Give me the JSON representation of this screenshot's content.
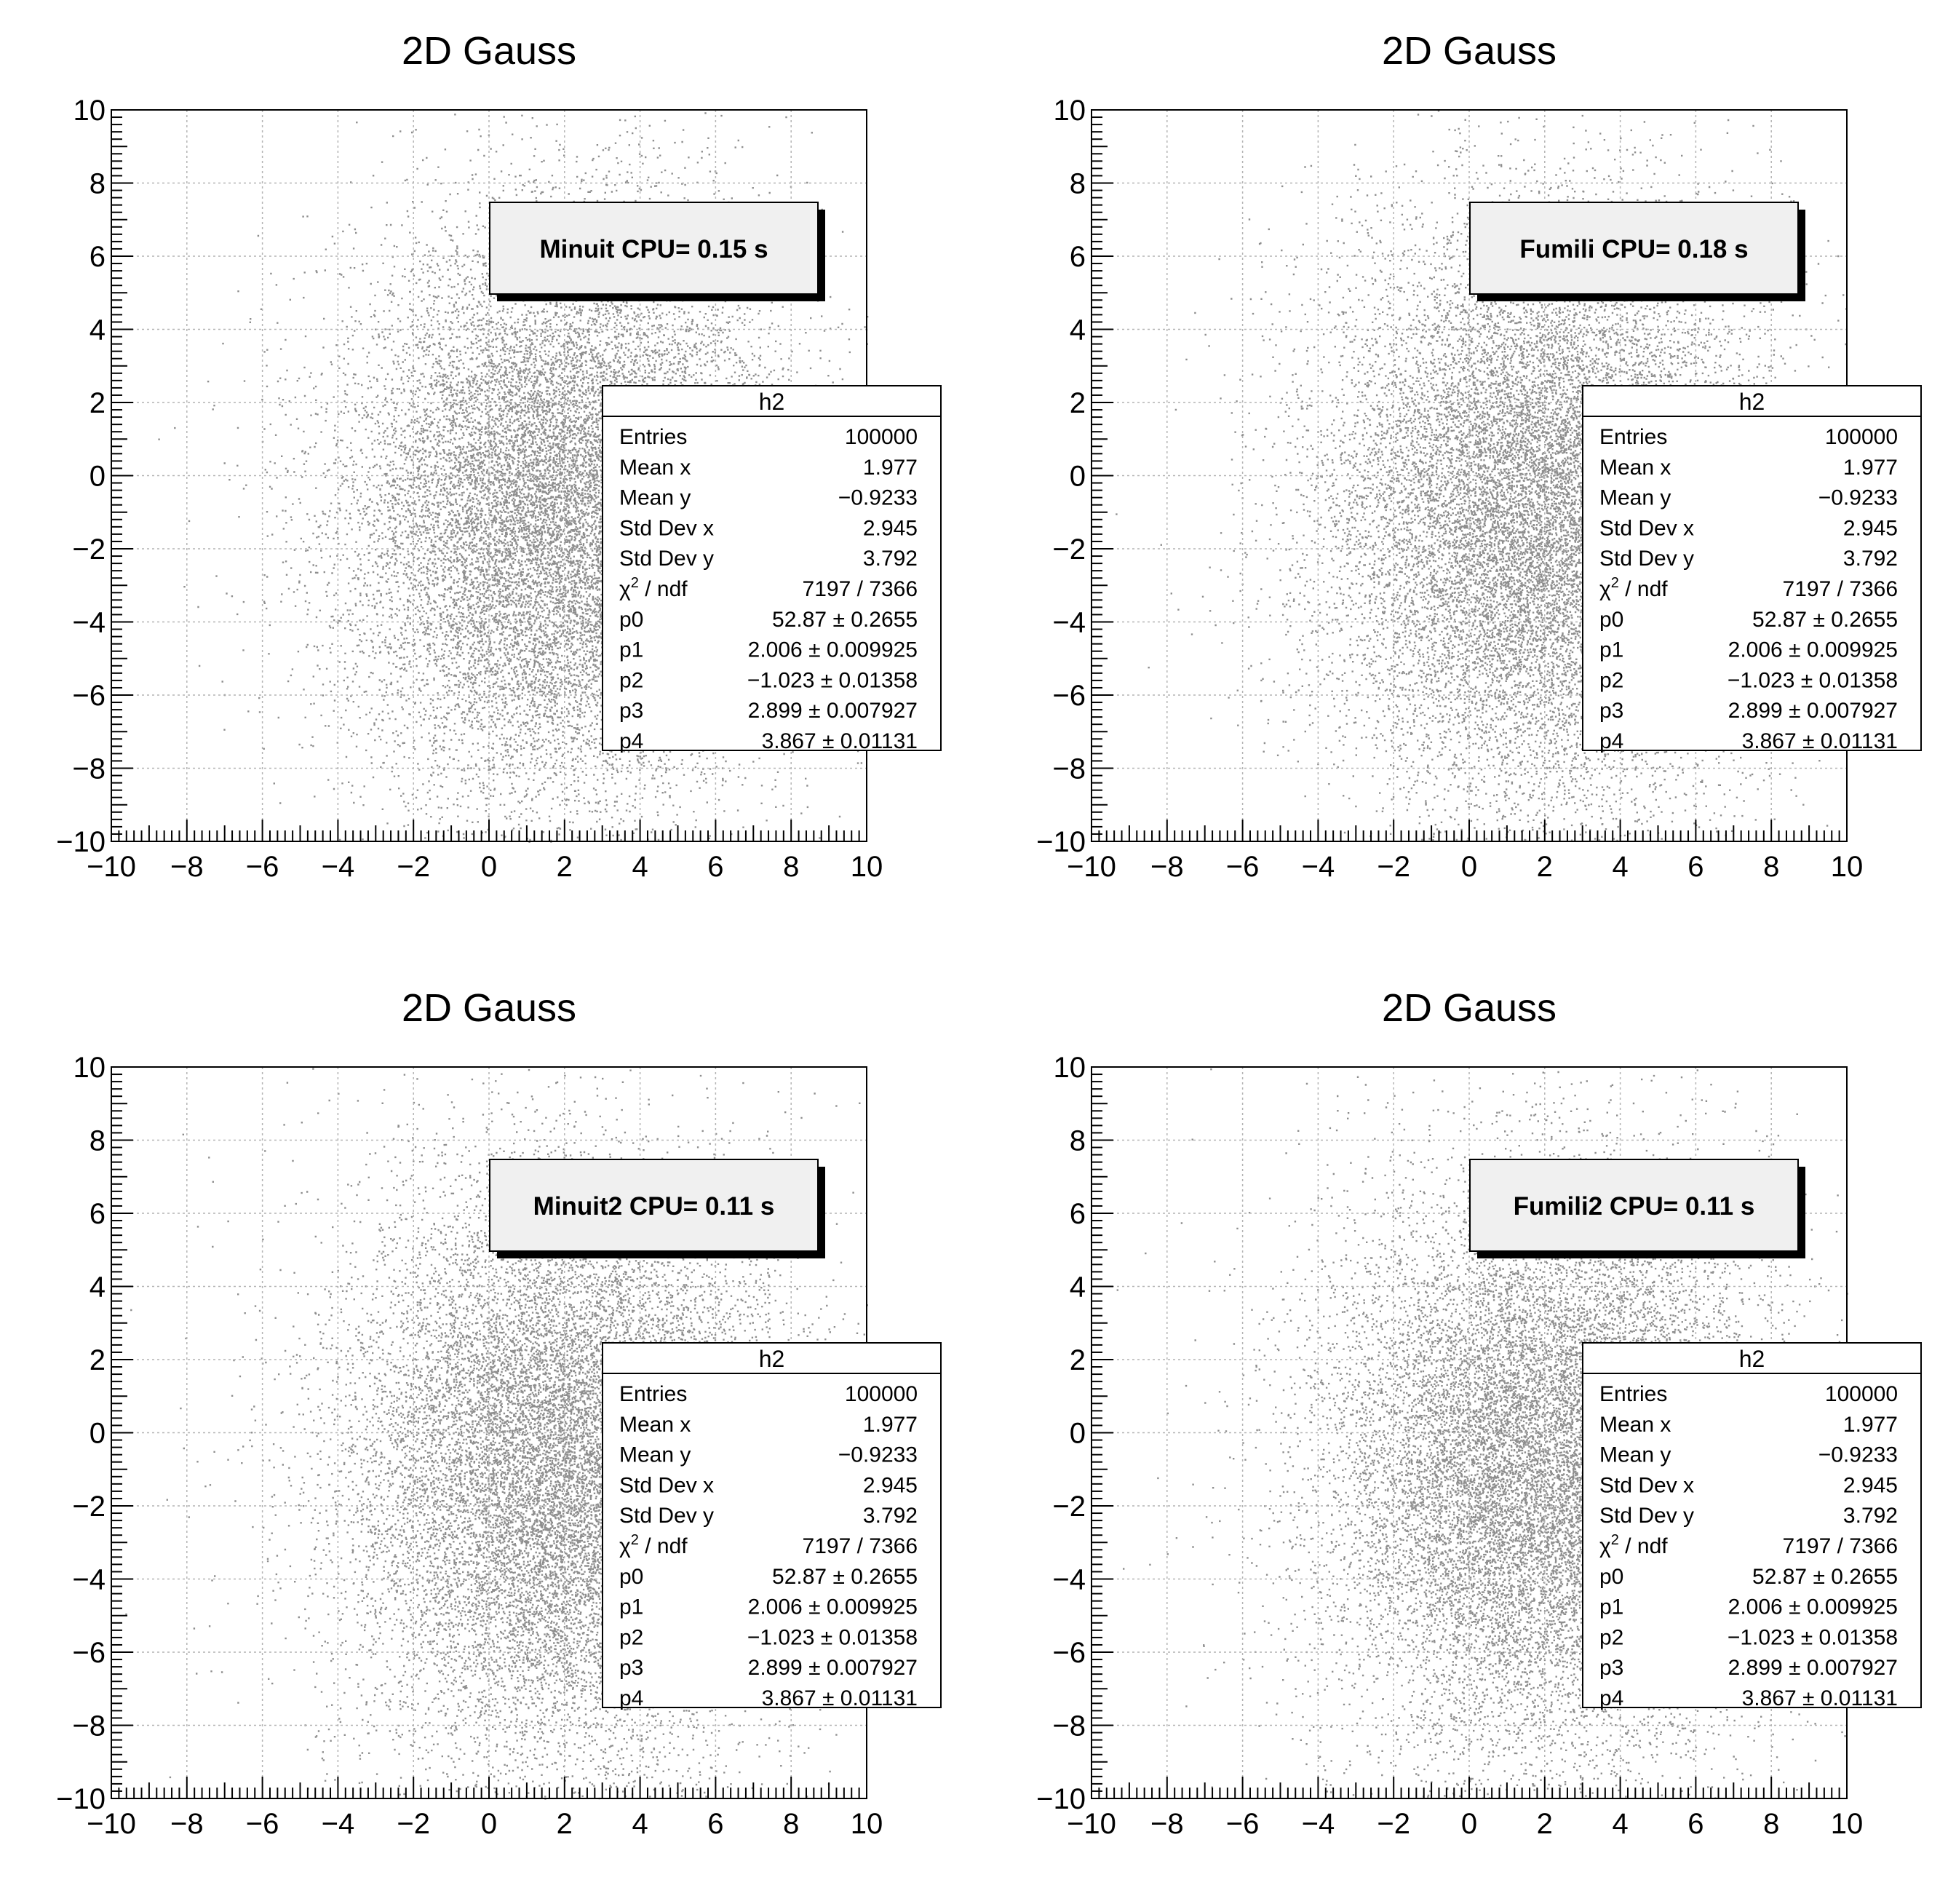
{
  "chart_data": [
    {
      "type": "scatter",
      "title": "2D Gauss",
      "xlim": [
        -10,
        10
      ],
      "ylim": [
        -10,
        10
      ],
      "xticks": [
        "−10",
        "−8",
        "−6",
        "−4",
        "−2",
        "0",
        "2",
        "4",
        "6",
        "8",
        "10"
      ],
      "yticks": [
        "−10",
        "−8",
        "−6",
        "−4",
        "−2",
        "0",
        "2",
        "4",
        "6",
        "8",
        "10"
      ],
      "grid": true,
      "distribution": {
        "mean_x": 2.0,
        "mean_y": -1.0,
        "std_x": 2.9,
        "std_y": 3.9
      },
      "cpu_label": "Minuit CPU= 0.15 s",
      "stats": {
        "title": "h2",
        "rows": [
          {
            "name": "Entries",
            "value": "100000"
          },
          {
            "name": "Mean x",
            "value": "1.977"
          },
          {
            "name": "Mean y",
            "value": "−0.9233"
          },
          {
            "name": "Std Dev x",
            "value": "2.945"
          },
          {
            "name": "Std Dev y",
            "value": "3.792"
          },
          {
            "name": "χ2 / ndf",
            "value": "7197 / 7366"
          },
          {
            "name": "p0",
            "value": "52.87 ± 0.2655"
          },
          {
            "name": "p1",
            "value": "2.006 ± 0.009925"
          },
          {
            "name": "p2",
            "value": "−1.023 ± 0.01358"
          },
          {
            "name": "p3",
            "value": "2.899 ± 0.007927"
          },
          {
            "name": "p4",
            "value": "3.867 ± 0.01131"
          }
        ]
      }
    },
    {
      "type": "scatter",
      "title": "2D Gauss",
      "xlim": [
        -10,
        10
      ],
      "ylim": [
        -10,
        10
      ],
      "xticks": [
        "−10",
        "−8",
        "−6",
        "−4",
        "−2",
        "0",
        "2",
        "4",
        "6",
        "8",
        "10"
      ],
      "yticks": [
        "−10",
        "−8",
        "−6",
        "−4",
        "−2",
        "0",
        "2",
        "4",
        "6",
        "8",
        "10"
      ],
      "grid": true,
      "distribution": {
        "mean_x": 2.0,
        "mean_y": -1.0,
        "std_x": 2.9,
        "std_y": 3.9
      },
      "cpu_label": "Fumili CPU= 0.18 s",
      "stats": {
        "title": "h2",
        "rows": [
          {
            "name": "Entries",
            "value": "100000"
          },
          {
            "name": "Mean x",
            "value": "1.977"
          },
          {
            "name": "Mean y",
            "value": "−0.9233"
          },
          {
            "name": "Std Dev x",
            "value": "2.945"
          },
          {
            "name": "Std Dev y",
            "value": "3.792"
          },
          {
            "name": "χ2 / ndf",
            "value": "7197 / 7366"
          },
          {
            "name": "p0",
            "value": "52.87 ± 0.2655"
          },
          {
            "name": "p1",
            "value": "2.006 ± 0.009925"
          },
          {
            "name": "p2",
            "value": "−1.023 ± 0.01358"
          },
          {
            "name": "p3",
            "value": "2.899 ± 0.007927"
          },
          {
            "name": "p4",
            "value": "3.867 ± 0.01131"
          }
        ]
      }
    },
    {
      "type": "scatter",
      "title": "2D Gauss",
      "xlim": [
        -10,
        10
      ],
      "ylim": [
        -10,
        10
      ],
      "xticks": [
        "−10",
        "−8",
        "−6",
        "−4",
        "−2",
        "0",
        "2",
        "4",
        "6",
        "8",
        "10"
      ],
      "yticks": [
        "−10",
        "−8",
        "−6",
        "−4",
        "−2",
        "0",
        "2",
        "4",
        "6",
        "8",
        "10"
      ],
      "grid": true,
      "distribution": {
        "mean_x": 2.0,
        "mean_y": -1.0,
        "std_x": 2.9,
        "std_y": 3.9
      },
      "cpu_label": "Minuit2 CPU= 0.11 s",
      "stats": {
        "title": "h2",
        "rows": [
          {
            "name": "Entries",
            "value": "100000"
          },
          {
            "name": "Mean x",
            "value": "1.977"
          },
          {
            "name": "Mean y",
            "value": "−0.9233"
          },
          {
            "name": "Std Dev x",
            "value": "2.945"
          },
          {
            "name": "Std Dev y",
            "value": "3.792"
          },
          {
            "name": "χ2 / ndf",
            "value": "7197 / 7366"
          },
          {
            "name": "p0",
            "value": "52.87 ± 0.2655"
          },
          {
            "name": "p1",
            "value": "2.006 ± 0.009925"
          },
          {
            "name": "p2",
            "value": "−1.023 ± 0.01358"
          },
          {
            "name": "p3",
            "value": "2.899 ± 0.007927"
          },
          {
            "name": "p4",
            "value": "3.867 ± 0.01131"
          }
        ]
      }
    },
    {
      "type": "scatter",
      "title": "2D Gauss",
      "xlim": [
        -10,
        10
      ],
      "ylim": [
        -10,
        10
      ],
      "xticks": [
        "−10",
        "−8",
        "−6",
        "−4",
        "−2",
        "0",
        "2",
        "4",
        "6",
        "8",
        "10"
      ],
      "yticks": [
        "−10",
        "−8",
        "−6",
        "−4",
        "−2",
        "0",
        "2",
        "4",
        "6",
        "8",
        "10"
      ],
      "grid": true,
      "distribution": {
        "mean_x": 2.0,
        "mean_y": -1.0,
        "std_x": 2.9,
        "std_y": 3.9
      },
      "cpu_label": "Fumili2 CPU= 0.11 s",
      "stats": {
        "title": "h2",
        "rows": [
          {
            "name": "Entries",
            "value": "100000"
          },
          {
            "name": "Mean x",
            "value": "1.977"
          },
          {
            "name": "Mean y",
            "value": "−0.9233"
          },
          {
            "name": "Std Dev x",
            "value": "2.945"
          },
          {
            "name": "Std Dev y",
            "value": "3.792"
          },
          {
            "name": "χ2 / ndf",
            "value": "7197 / 7366"
          },
          {
            "name": "p0",
            "value": "52.87 ± 0.2655"
          },
          {
            "name": "p1",
            "value": "2.006 ± 0.009925"
          },
          {
            "name": "p2",
            "value": "−1.023 ± 0.01358"
          },
          {
            "name": "p3",
            "value": "2.899 ± 0.007927"
          },
          {
            "name": "p4",
            "value": "3.867 ± 0.01131"
          }
        ]
      }
    }
  ],
  "colors": {
    "background": "#ffffff",
    "axis": "#000000",
    "grid": "#b4b4b4",
    "marker": "#7a7a7a",
    "label_box_fill": "#f0f0f0",
    "label_box_shadow": "#000000"
  }
}
